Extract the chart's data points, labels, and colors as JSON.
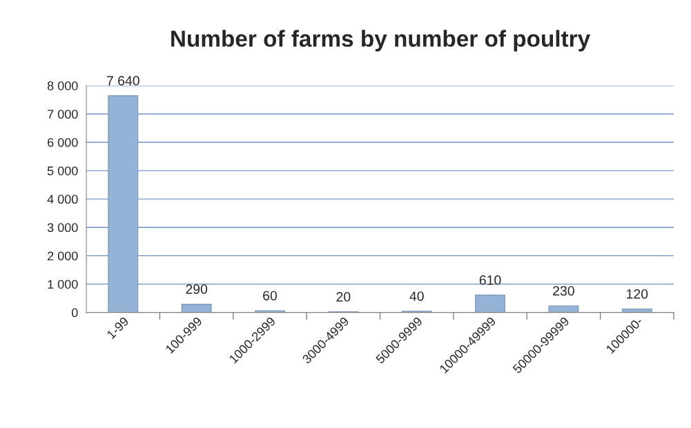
{
  "chart_data": {
    "type": "bar",
    "title": "Number of farms by number of poultry",
    "categories": [
      "1-99",
      "100-999",
      "1000-2999",
      "3000-4999",
      "5000-9999",
      "10000-49999",
      "50000-99999",
      "100000-"
    ],
    "values": [
      7640,
      290,
      60,
      20,
      40,
      610,
      230,
      120
    ],
    "value_labels": [
      "7 640",
      "290",
      "60",
      "20",
      "40",
      "610",
      "230",
      "120"
    ],
    "color": "#95b3d7",
    "ylim": [
      0,
      8000
    ],
    "yticks": [
      {
        "value": 0,
        "label": "0"
      },
      {
        "value": 1000,
        "label": "1 000"
      },
      {
        "value": 2000,
        "label": "2 000"
      },
      {
        "value": 3000,
        "label": "3 000"
      },
      {
        "value": 4000,
        "label": "4 000"
      },
      {
        "value": 5000,
        "label": "5 000"
      },
      {
        "value": 6000,
        "label": "6 000"
      },
      {
        "value": 7000,
        "label": "7 000"
      },
      {
        "value": 8000,
        "label": "8 000"
      }
    ],
    "grid": "y",
    "legend": false
  }
}
